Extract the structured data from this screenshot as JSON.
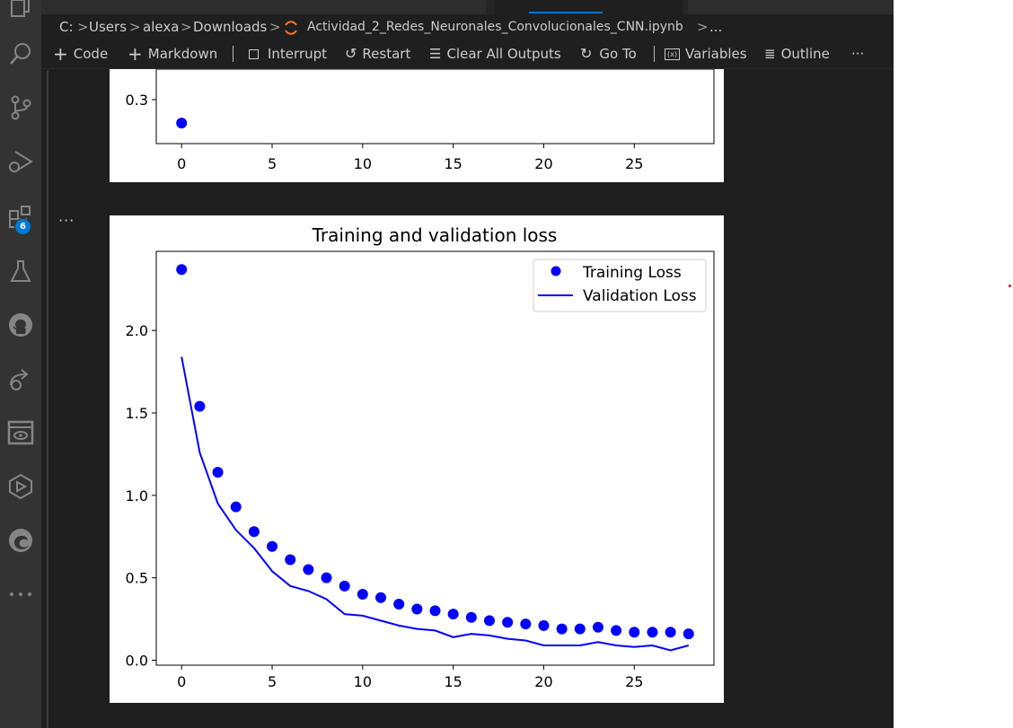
{
  "breadcrumb": {
    "items": [
      "C:",
      "Users",
      "alexa",
      "Downloads",
      "Actividad_2_Redes_Neuronales_Convolucionales_CNN.ipynb",
      "..."
    ],
    "separator": ">"
  },
  "toolbar": {
    "code": "Code",
    "markdown": "Markdown",
    "interrupt": "Interrupt",
    "restart": "Restart",
    "clear_outputs": "Clear All Outputs",
    "go_to": "Go To",
    "variables": "Variables",
    "outline": "Outline",
    "more": "···"
  },
  "activity_bar": {
    "icons": [
      "explorer-icon",
      "search-icon",
      "source-control-icon",
      "run-debug-icon",
      "extensions-icon",
      "testing-icon",
      "github-icon",
      "remote-icon",
      "notebook-icon",
      "deploy-icon",
      "edge-icon",
      "more-icon"
    ],
    "extensions_badge": "6"
  },
  "cell": {
    "more_label": "···"
  },
  "colors": {
    "accent": "#0078d4",
    "series": "#0000ff",
    "editor_bg": "#1f1f1f",
    "activity_bg": "#333333"
  },
  "chart_data": [
    {
      "type": "scatter",
      "title": "",
      "xlabel": "",
      "ylabel": "",
      "xlim": [
        -1.4,
        29.4
      ],
      "yticks": [
        "0.3"
      ],
      "xticks": [
        "0",
        "5",
        "10",
        "15",
        "20",
        "25"
      ],
      "series": [
        {
          "values": [
            [
              0,
              0.21
            ]
          ]
        }
      ]
    },
    {
      "type": "line",
      "title": "Training and validation loss",
      "xlabel": "",
      "ylabel": "",
      "xlim": [
        -1.4,
        29.4
      ],
      "ylim": [
        -0.03,
        2.48
      ],
      "xticks": [
        "0",
        "5",
        "10",
        "15",
        "20",
        "25"
      ],
      "yticks": [
        "0.0",
        "0.5",
        "1.0",
        "1.5",
        "2.0"
      ],
      "legend": "top-right",
      "x": [
        0,
        1,
        2,
        3,
        4,
        5,
        6,
        7,
        8,
        9,
        10,
        11,
        12,
        13,
        14,
        15,
        16,
        17,
        18,
        19,
        20,
        21,
        22,
        23,
        24,
        25,
        26,
        27,
        28
      ],
      "series": [
        {
          "name": "Training Loss",
          "style": "dots",
          "values": [
            2.37,
            1.54,
            1.14,
            0.93,
            0.78,
            0.69,
            0.61,
            0.55,
            0.5,
            0.45,
            0.4,
            0.38,
            0.34,
            0.31,
            0.3,
            0.28,
            0.26,
            0.24,
            0.23,
            0.22,
            0.21,
            0.19,
            0.19,
            0.2,
            0.18,
            0.17,
            0.17,
            0.17,
            0.16
          ]
        },
        {
          "name": "Validation Loss",
          "style": "line",
          "values": [
            1.84,
            1.26,
            0.95,
            0.79,
            0.68,
            0.54,
            0.45,
            0.42,
            0.37,
            0.28,
            0.27,
            0.24,
            0.21,
            0.19,
            0.18,
            0.14,
            0.16,
            0.15,
            0.13,
            0.12,
            0.09,
            0.09,
            0.09,
            0.11,
            0.09,
            0.08,
            0.09,
            0.06,
            0.09
          ]
        }
      ]
    }
  ]
}
